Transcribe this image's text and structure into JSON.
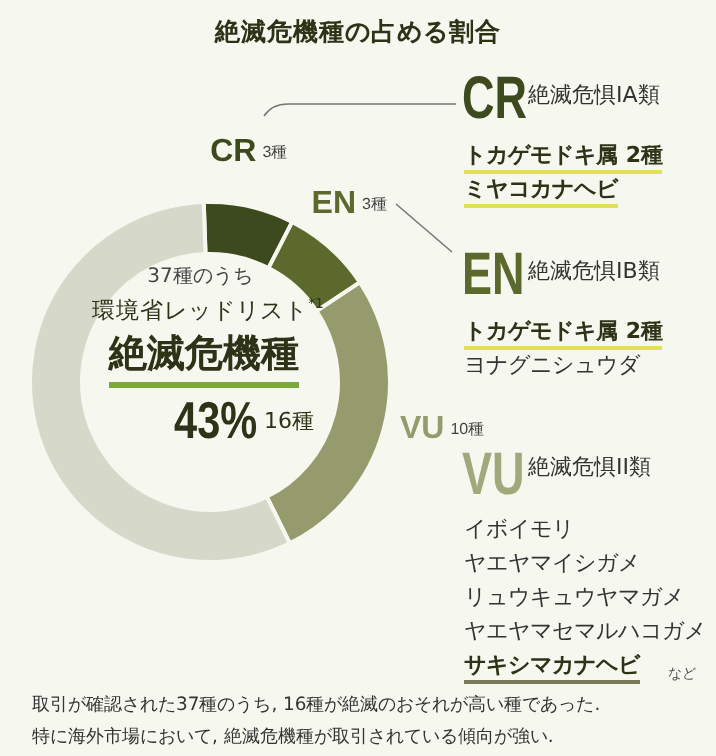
{
  "chart_data": {
    "type": "donut",
    "title": "絶滅危機種の占める割合",
    "categories": [
      "CR",
      "EN",
      "VU",
      null
    ],
    "values": [
      3,
      3,
      10,
      21
    ],
    "colors": [
      "#3d4a1e",
      "#5b6a2c",
      "#959b6c",
      "#d6d9c9"
    ],
    "value_labels": [
      "3種",
      "3種",
      "10種",
      null
    ],
    "annotations": [
      "37種のうち",
      "環境省レッドリスト$^{*1}$",
      "絶滅危機種",
      "43%",
      "16種",
      "CR",
      "絶滅危惧IA類",
      "トカゲモドキ属 2種",
      "ミヤコカナヘビ",
      "EN",
      "絶滅危惧IB類",
      "トカゲモドキ属 2種",
      "ヨナグニシュウダ",
      "VU",
      "絶滅危惧II類",
      "イボイモリ",
      "ヤエヤマイシガメ",
      "リュウキュウヤマガメ",
      "ヤエヤマセマルハコガメ",
      "サキシマカナヘビ",
      "など",
      "取引が確認された37種のうち, 16種が絶滅のおそれが高い種であった.",
      "特に海外市場において, 絶滅危機種が取引されている傾向が強い."
    ]
  }
}
